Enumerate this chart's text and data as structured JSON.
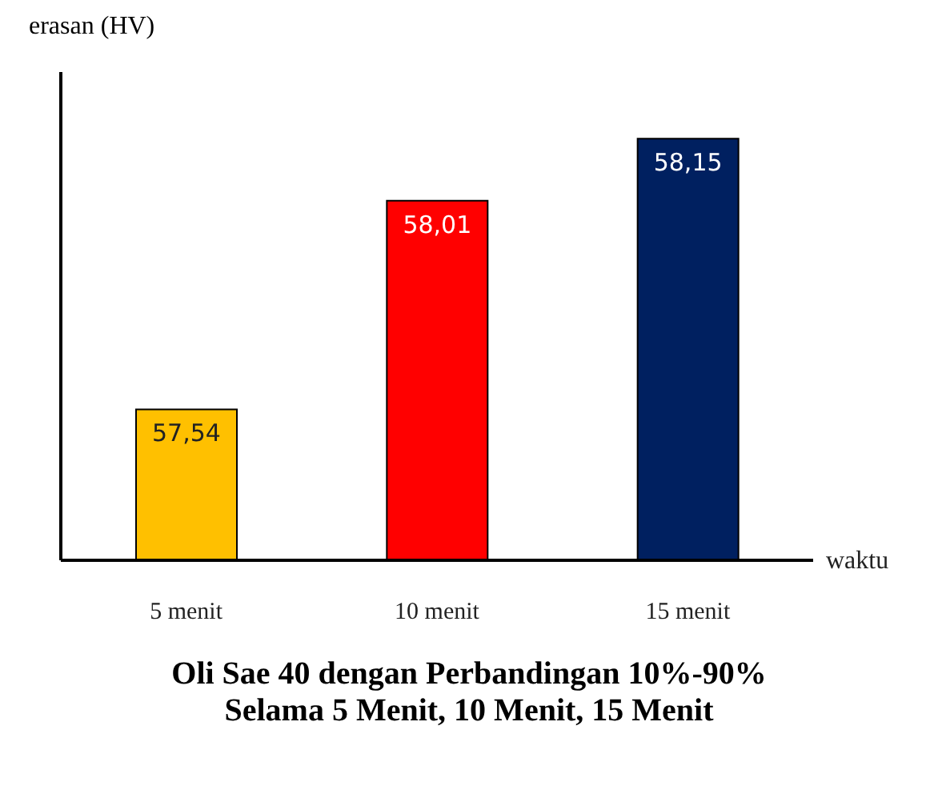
{
  "chart_data": {
    "type": "bar",
    "title": "Oli Sae 40 dengan Perbandingan 10%-90%",
    "subtitle": "Selama 5 Menit, 10 Menit, 15 Menit",
    "xlabel": "waktu",
    "ylabel": "erasan (HV)",
    "categories": [
      "5 menit",
      "10 menit",
      "15 menit"
    ],
    "values": [
      57.54,
      58.01,
      58.15
    ],
    "colors": [
      "#ffc000",
      "#ff0000",
      "#002060"
    ],
    "value_labels": [
      "57,54",
      "58,01",
      "58,15"
    ],
    "ylim": [
      57.2,
      58.3
    ],
    "tick_labels": "x",
    "grid": false
  }
}
